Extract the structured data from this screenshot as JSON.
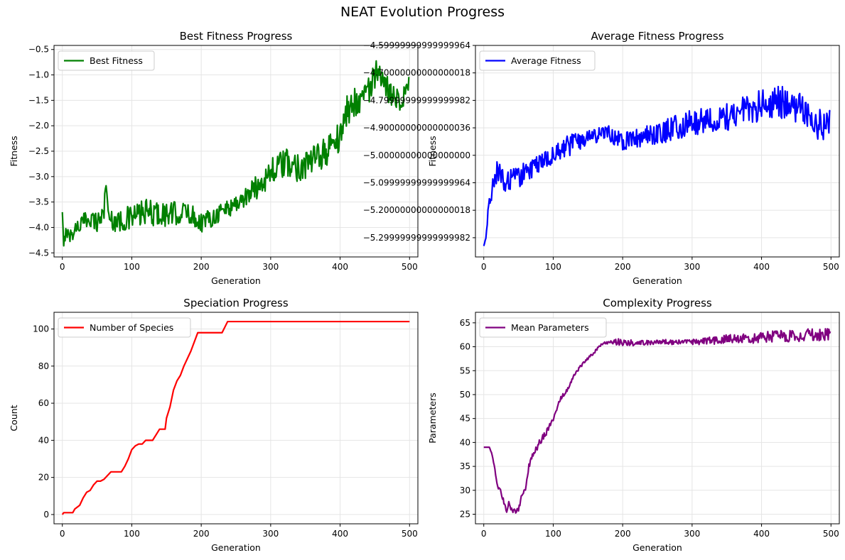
{
  "figure": {
    "title": "NEAT Evolution Progress"
  },
  "chart_data": [
    {
      "type": "line",
      "title": "Best Fitness Progress",
      "xlabel": "Generation",
      "ylabel": "Fitness",
      "xlim": [
        -12,
        512
      ],
      "ylim": [
        -4.58,
        -0.42
      ],
      "xticks": [
        0,
        100,
        200,
        300,
        400,
        500
      ],
      "yticks": [
        -4.5,
        -4.0,
        -3.5,
        -3.0,
        -2.5,
        -2.0,
        -1.5,
        -1.0,
        -0.5
      ],
      "grid": true,
      "legend": "upper-left",
      "series": [
        {
          "name": "Best Fitness",
          "color": "#008000",
          "noisy": true,
          "x": [
            0,
            2,
            5,
            10,
            20,
            30,
            40,
            50,
            60,
            63,
            66,
            80,
            100,
            120,
            150,
            180,
            200,
            220,
            240,
            260,
            280,
            300,
            320,
            340,
            360,
            380,
            400,
            410,
            420,
            440,
            452,
            460,
            470,
            480,
            490,
            499
          ],
          "y": [
            -3.7,
            -4.4,
            -4.0,
            -4.2,
            -4.0,
            -3.9,
            -3.8,
            -3.9,
            -3.7,
            -3.0,
            -3.8,
            -3.9,
            -3.8,
            -3.7,
            -3.75,
            -3.7,
            -3.9,
            -3.75,
            -3.6,
            -3.45,
            -3.2,
            -2.9,
            -2.75,
            -2.8,
            -2.7,
            -2.5,
            -2.2,
            -1.7,
            -1.55,
            -1.3,
            -1.0,
            -1.2,
            -1.3,
            -1.4,
            -1.5,
            -1.15
          ],
          "amp": [
            0.0,
            0.1,
            0.15,
            0.15,
            0.15,
            0.18,
            0.18,
            0.2,
            0.2,
            0.2,
            0.2,
            0.22,
            0.25,
            0.25,
            0.25,
            0.22,
            0.2,
            0.2,
            0.2,
            0.22,
            0.25,
            0.28,
            0.3,
            0.3,
            0.28,
            0.3,
            0.3,
            0.3,
            0.3,
            0.3,
            0.3,
            0.3,
            0.28,
            0.25,
            0.22,
            0.15
          ]
        }
      ]
    },
    {
      "type": "line",
      "title": "Average Fitness Progress",
      "xlabel": "Generation",
      "ylabel": "Fitness",
      "xlim": [
        -12,
        512
      ],
      "ylim": [
        -5.37,
        -4.6
      ],
      "xticks": [
        0,
        100,
        200,
        300,
        400,
        500
      ],
      "yticks": [
        -5.3,
        -5.2,
        -5.1,
        -5.0,
        -4.9,
        -4.8,
        -4.7,
        -4.6
      ],
      "grid": true,
      "legend": "upper-left",
      "series": [
        {
          "name": "Average Fitness",
          "color": "#0000ff",
          "noisy": true,
          "x": [
            0,
            3,
            8,
            15,
            20,
            30,
            40,
            50,
            60,
            80,
            100,
            120,
            150,
            180,
            200,
            250,
            300,
            350,
            400,
            420,
            450,
            470,
            480,
            490,
            499
          ],
          "y": [
            -5.33,
            -5.3,
            -5.15,
            -5.1,
            -5.05,
            -5.1,
            -5.1,
            -5.08,
            -5.06,
            -5.03,
            -5.0,
            -4.97,
            -4.93,
            -4.92,
            -4.95,
            -4.92,
            -4.88,
            -4.86,
            -4.82,
            -4.8,
            -4.82,
            -4.85,
            -4.88,
            -4.9,
            -4.87
          ],
          "amp": [
            0.0,
            0.02,
            0.04,
            0.04,
            0.04,
            0.04,
            0.05,
            0.05,
            0.04,
            0.03,
            0.03,
            0.04,
            0.03,
            0.03,
            0.03,
            0.04,
            0.05,
            0.05,
            0.06,
            0.06,
            0.06,
            0.06,
            0.06,
            0.05,
            0.04
          ]
        }
      ]
    },
    {
      "type": "line",
      "title": "Speciation Progress",
      "xlabel": "Generation",
      "ylabel": "Count",
      "xlim": [
        -12,
        512
      ],
      "ylim": [
        -5,
        109
      ],
      "xticks": [
        0,
        100,
        200,
        300,
        400,
        500
      ],
      "yticks": [
        0,
        20,
        40,
        60,
        80,
        100
      ],
      "grid": true,
      "legend": "upper-left",
      "series": [
        {
          "name": "Number of Species",
          "color": "#ff0000",
          "noisy": false,
          "x": [
            0,
            2,
            15,
            18,
            25,
            30,
            35,
            40,
            45,
            50,
            55,
            60,
            65,
            70,
            85,
            90,
            95,
            100,
            105,
            110,
            115,
            120,
            130,
            135,
            140,
            148,
            150,
            155,
            160,
            165,
            170,
            175,
            185,
            195,
            230,
            238,
            500
          ],
          "y": [
            0,
            1,
            1,
            3,
            5,
            9,
            12,
            13,
            16,
            18,
            18,
            19,
            21,
            23,
            23,
            26,
            30,
            35,
            37,
            38,
            38,
            40,
            40,
            43,
            46,
            46,
            52,
            58,
            67,
            72,
            75,
            80,
            88,
            98,
            98,
            104,
            104
          ]
        }
      ]
    },
    {
      "type": "line",
      "title": "Complexity Progress",
      "xlabel": "Generation",
      "ylabel": "Parameters",
      "xlim": [
        -12,
        512
      ],
      "ylim": [
        23.0,
        67.2
      ],
      "xticks": [
        0,
        100,
        200,
        300,
        400,
        500
      ],
      "yticks": [
        25,
        30,
        35,
        40,
        45,
        50,
        55,
        60,
        65
      ],
      "grid": true,
      "legend": "upper-left",
      "series": [
        {
          "name": "Mean Parameters",
          "color": "#800080",
          "noisy": true,
          "x": [
            0,
            8,
            12,
            20,
            25,
            30,
            33,
            36,
            40,
            45,
            50,
            55,
            60,
            65,
            70,
            80,
            90,
            100,
            110,
            120,
            130,
            140,
            150,
            160,
            170,
            180,
            190,
            200,
            220,
            250,
            300,
            350,
            400,
            450,
            480,
            499
          ],
          "y": [
            39.0,
            39.0,
            37.5,
            31.0,
            29.5,
            27.0,
            25.5,
            28.0,
            26.0,
            25.5,
            26.0,
            29.0,
            30.5,
            35.0,
            37.0,
            40.0,
            42.0,
            45.0,
            49.0,
            51.0,
            54.0,
            56.0,
            57.5,
            59.0,
            60.5,
            61.0,
            61.0,
            61.0,
            60.8,
            61.0,
            61.0,
            61.5,
            62.0,
            62.3,
            62.5,
            63.0
          ],
          "amp": [
            0.0,
            0.0,
            0.2,
            0.4,
            0.5,
            0.6,
            0.6,
            0.6,
            0.6,
            0.6,
            0.6,
            0.6,
            0.8,
            0.8,
            0.8,
            0.7,
            0.6,
            0.5,
            0.4,
            0.4,
            0.3,
            0.3,
            0.3,
            0.3,
            0.3,
            0.3,
            0.6,
            0.8,
            0.6,
            0.5,
            0.6,
            1.0,
            1.2,
            1.3,
            1.5,
            1.8
          ]
        }
      ]
    }
  ]
}
